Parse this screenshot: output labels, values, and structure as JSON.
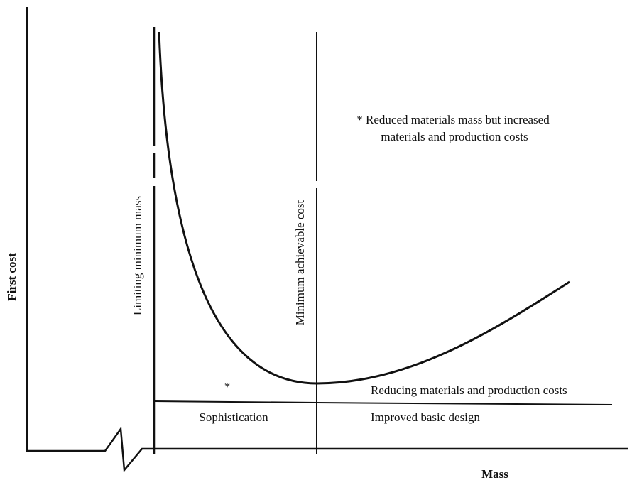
{
  "axes": {
    "y_label": "First cost",
    "x_label": "Mass"
  },
  "vertical_lines": {
    "left": "Limiting minimum mass",
    "right": "Minimum achievable cost"
  },
  "note": {
    "lines": [
      "* Reduced materials mass but increased",
      "materials and production costs"
    ]
  },
  "annotations": {
    "star": "*",
    "reducing": "Reducing materials and production costs",
    "sophistication": "Sophistication",
    "improved": "Improved basic design"
  }
}
